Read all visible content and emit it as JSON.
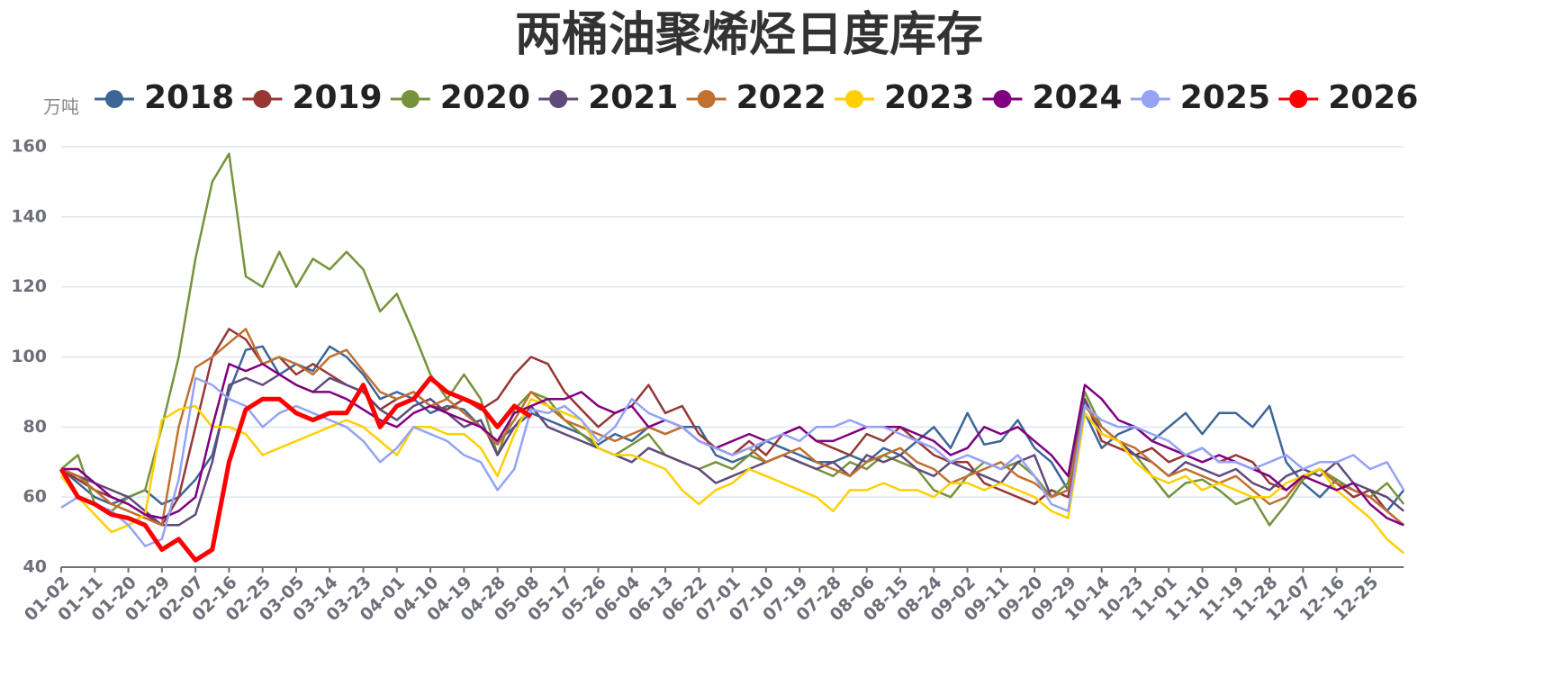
{
  "chart_data": {
    "type": "line",
    "title": "两桶油聚烯烃日度库存",
    "y_unit": "万吨",
    "categories": [
      "01-02",
      null,
      "01-11",
      null,
      "01-20",
      null,
      "01-29",
      null,
      "02-07",
      null,
      "02-16",
      null,
      "02-25",
      null,
      "03-05",
      null,
      "03-14",
      null,
      "03-23",
      null,
      "04-01",
      null,
      "04-10",
      null,
      "04-19",
      null,
      "04-28",
      null,
      "05-08",
      null,
      "05-17",
      null,
      "05-26",
      null,
      "06-04",
      null,
      "06-13",
      null,
      "06-22",
      null,
      "07-01",
      null,
      "07-10",
      null,
      "07-19",
      null,
      "07-28",
      null,
      "08-06",
      null,
      "08-15",
      null,
      "08-24",
      null,
      "09-02",
      null,
      "09-11",
      null,
      "09-20",
      null,
      "09-29",
      null,
      "10-14",
      null,
      "10-23",
      null,
      "11-01",
      null,
      "11-10",
      null,
      "11-19",
      null,
      "11-28",
      null,
      "12-07",
      null,
      "12-16",
      null,
      "12-25",
      null,
      null
    ],
    "ylim": [
      40,
      160
    ],
    "yticks": [
      40,
      60,
      80,
      100,
      120,
      140,
      160
    ],
    "grid": true,
    "series": [
      {
        "name": "2018",
        "color": "#3d6698",
        "values": [
          68,
          64,
          60,
          58,
          60,
          62,
          58,
          60,
          65,
          72,
          90,
          102,
          103,
          95,
          98,
          96,
          103,
          100,
          95,
          88,
          90,
          88,
          84,
          86,
          85,
          80,
          76,
          80,
          84,
          82,
          80,
          78,
          75,
          78,
          76,
          80,
          78,
          80,
          80,
          72,
          70,
          72,
          76,
          74,
          72,
          70,
          70,
          72,
          70,
          74,
          72,
          76,
          80,
          74,
          84,
          75,
          76,
          82,
          74,
          70,
          62,
          84,
          74,
          78,
          80,
          76,
          80,
          84,
          78,
          84,
          84,
          80,
          86,
          70,
          64,
          60,
          65,
          62,
          60,
          56,
          62
        ]
      },
      {
        "name": "2019",
        "color": "#953735",
        "values": [
          68,
          65,
          62,
          60,
          58,
          55,
          52,
          60,
          80,
          100,
          108,
          105,
          98,
          100,
          95,
          98,
          95,
          92,
          90,
          85,
          88,
          90,
          86,
          85,
          88,
          85,
          88,
          95,
          100,
          98,
          90,
          85,
          80,
          84,
          86,
          92,
          84,
          86,
          78,
          74,
          72,
          76,
          72,
          78,
          80,
          76,
          74,
          72,
          78,
          76,
          80,
          76,
          72,
          70,
          70,
          64,
          62,
          60,
          58,
          62,
          60,
          88,
          76,
          74,
          72,
          74,
          70,
          72,
          74,
          70,
          72,
          70,
          64,
          62,
          66,
          68,
          64,
          60,
          62,
          56,
          52
        ]
      },
      {
        "name": "2020",
        "color": "#76933c",
        "values": [
          68,
          72,
          58,
          56,
          60,
          62,
          80,
          100,
          128,
          150,
          158,
          123,
          120,
          130,
          120,
          128,
          125,
          130,
          125,
          113,
          118,
          107,
          95,
          88,
          95,
          88,
          72,
          85,
          90,
          88,
          82,
          78,
          74,
          72,
          75,
          78,
          72,
          70,
          68,
          70,
          68,
          72,
          70,
          72,
          70,
          68,
          66,
          70,
          68,
          72,
          70,
          68,
          62,
          60,
          66,
          70,
          68,
          70,
          66,
          60,
          64,
          90,
          80,
          76,
          72,
          66,
          60,
          64,
          65,
          62,
          58,
          60,
          52,
          58,
          65,
          68,
          65,
          62,
          60,
          64,
          58
        ]
      },
      {
        "name": "2021",
        "color": "#604a7b",
        "values": [
          68,
          66,
          64,
          62,
          60,
          56,
          52,
          52,
          55,
          70,
          92,
          94,
          92,
          95,
          92,
          90,
          94,
          92,
          90,
          85,
          82,
          86,
          88,
          84,
          80,
          82,
          72,
          80,
          86,
          80,
          78,
          76,
          74,
          72,
          70,
          74,
          72,
          70,
          68,
          64,
          66,
          68,
          70,
          72,
          70,
          68,
          70,
          66,
          72,
          70,
          72,
          68,
          66,
          70,
          68,
          66,
          64,
          70,
          72,
          60,
          62,
          88,
          78,
          76,
          72,
          70,
          66,
          70,
          68,
          66,
          68,
          64,
          62,
          66,
          68,
          66,
          70,
          64,
          62,
          60,
          56
        ]
      },
      {
        "name": "2022",
        "color": "#c0702f",
        "values": [
          68,
          66,
          62,
          58,
          56,
          54,
          52,
          80,
          97,
          100,
          104,
          108,
          98,
          100,
          98,
          95,
          100,
          102,
          96,
          90,
          88,
          90,
          86,
          88,
          84,
          80,
          75,
          82,
          90,
          86,
          82,
          80,
          78,
          76,
          78,
          80,
          78,
          80,
          76,
          74,
          72,
          74,
          70,
          72,
          74,
          70,
          68,
          66,
          70,
          72,
          74,
          70,
          68,
          64,
          66,
          68,
          70,
          66,
          64,
          60,
          62,
          86,
          80,
          76,
          74,
          70,
          66,
          68,
          66,
          64,
          66,
          62,
          58,
          60,
          66,
          68,
          64,
          62,
          60,
          56,
          52
        ]
      },
      {
        "name": "2023",
        "color": "#ffd000",
        "values": [
          66,
          60,
          55,
          50,
          52,
          55,
          82,
          85,
          86,
          80,
          80,
          78,
          72,
          74,
          76,
          78,
          80,
          82,
          80,
          76,
          72,
          80,
          80,
          78,
          78,
          74,
          66,
          78,
          88,
          86,
          84,
          82,
          74,
          72,
          72,
          70,
          68,
          62,
          58,
          62,
          64,
          68,
          66,
          64,
          62,
          60,
          56,
          62,
          62,
          64,
          62,
          62,
          60,
          64,
          64,
          62,
          64,
          62,
          60,
          56,
          54,
          84,
          78,
          76,
          70,
          66,
          64,
          66,
          62,
          64,
          62,
          60,
          60,
          64,
          66,
          68,
          62,
          58,
          54,
          48,
          44
        ]
      },
      {
        "name": "2024",
        "color": "#800080",
        "values": [
          68,
          68,
          64,
          60,
          58,
          55,
          54,
          56,
          60,
          80,
          98,
          96,
          98,
          95,
          92,
          90,
          90,
          88,
          85,
          82,
          80,
          84,
          86,
          84,
          82,
          80,
          76,
          84,
          86,
          88,
          88,
          90,
          86,
          84,
          86,
          80,
          82,
          80,
          76,
          74,
          76,
          78,
          76,
          78,
          80,
          76,
          76,
          78,
          80,
          80,
          80,
          78,
          76,
          72,
          74,
          80,
          78,
          80,
          76,
          72,
          66,
          92,
          88,
          82,
          80,
          76,
          74,
          72,
          70,
          72,
          70,
          68,
          66,
          62,
          66,
          64,
          62,
          64,
          58,
          54,
          52
        ]
      },
      {
        "name": "2025",
        "color": "#95a3f5",
        "values": [
          57,
          60,
          58,
          56,
          52,
          46,
          48,
          65,
          94,
          92,
          88,
          86,
          80,
          84,
          86,
          84,
          82,
          80,
          76,
          70,
          74,
          80,
          78,
          76,
          72,
          70,
          62,
          68,
          85,
          84,
          86,
          82,
          76,
          80,
          88,
          84,
          82,
          80,
          76,
          74,
          72,
          74,
          76,
          78,
          76,
          80,
          80,
          82,
          80,
          80,
          78,
          76,
          74,
          70,
          72,
          70,
          68,
          72,
          66,
          58,
          56,
          86,
          82,
          80,
          80,
          78,
          76,
          72,
          74,
          70,
          70,
          68,
          70,
          72,
          68,
          70,
          70,
          72,
          68,
          70,
          62
        ]
      },
      {
        "name": "2026",
        "color": "#ff0000",
        "values": [
          68,
          60,
          58,
          55,
          54,
          52,
          45,
          48,
          42,
          45,
          70,
          85,
          88,
          88,
          84,
          82,
          84,
          84,
          92,
          80,
          86,
          88,
          94,
          90,
          88,
          86,
          80,
          86,
          83,
          null,
          null,
          null,
          null,
          null,
          null,
          null,
          null,
          null,
          null,
          null,
          null,
          null,
          null,
          null,
          null,
          null,
          null,
          null,
          null,
          null,
          null,
          null,
          null,
          null,
          null,
          null,
          null,
          null,
          null,
          null,
          null,
          null,
          null,
          null,
          null,
          null,
          null,
          null,
          null,
          null,
          null,
          null,
          null,
          null,
          null,
          null,
          null,
          null,
          null,
          null,
          null
        ]
      }
    ]
  }
}
